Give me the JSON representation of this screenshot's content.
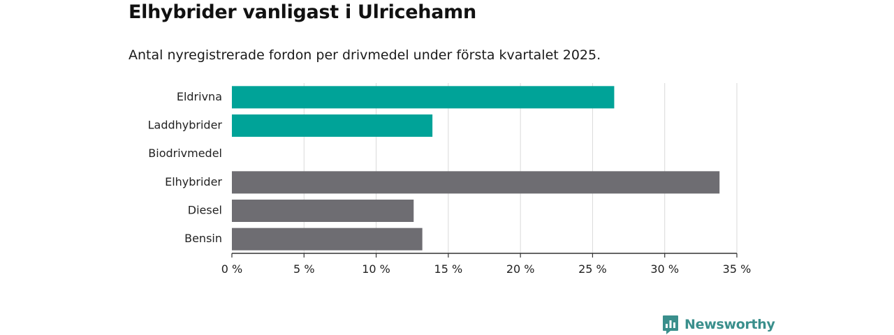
{
  "title": "Elhybrider vanligast i Ulricehamn",
  "subtitle": "Antal nyregistrerade fordon per drivmedel under första kvartalet 2025.",
  "brand": {
    "name": "Newsworthy",
    "icon": "newsworthy-logo-icon",
    "color": "#3a8f8c"
  },
  "colors": {
    "highlight": "#00a398",
    "default": "#6e6d72",
    "grid": "#d9d9d9",
    "axis": "#333333"
  },
  "chart_data": {
    "type": "bar",
    "orientation": "horizontal",
    "categories": [
      "Eldrivna",
      "Laddhybrider",
      "Biodrivmedel",
      "Elhybrider",
      "Diesel",
      "Bensin"
    ],
    "values": [
      26.5,
      13.9,
      0,
      33.8,
      12.6,
      13.2
    ],
    "highlighted": [
      true,
      true,
      false,
      false,
      false,
      false
    ],
    "xlim": [
      0,
      35
    ],
    "ticks": [
      0,
      5,
      10,
      15,
      20,
      25,
      30,
      35
    ],
    "tick_labels": [
      "0 %",
      "5 %",
      "10 %",
      "15 %",
      "20 %",
      "25 %",
      "30 %",
      "35 %"
    ],
    "grid": true,
    "xlabel": "",
    "ylabel": ""
  }
}
